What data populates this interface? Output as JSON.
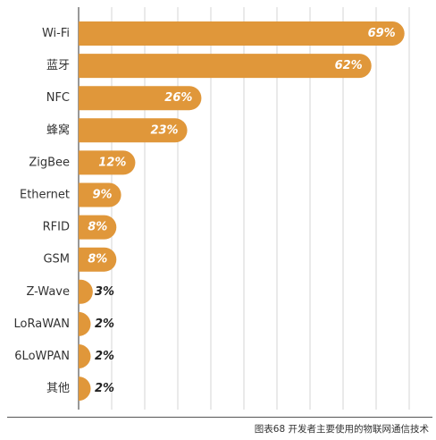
{
  "chart_data": {
    "type": "bar",
    "orientation": "horizontal",
    "categories": [
      "Wi-Fi",
      "蓝牙",
      "NFC",
      "蜂窝",
      "ZigBee",
      "Ethernet",
      "RFID",
      "GSM",
      "Z-Wave",
      "LoRaWAN",
      "6LoWPAN",
      "其他"
    ],
    "values": [
      69,
      62,
      26,
      23,
      12,
      9,
      8,
      8,
      3,
      2,
      2,
      2
    ],
    "value_labels": [
      "69%",
      "62%",
      "26%",
      "23%",
      "12%",
      "9%",
      "8%",
      "8%",
      "3%",
      "2%",
      "2%",
      "2%"
    ],
    "xlim": [
      0,
      70
    ],
    "grid": true,
    "bar_color": "#E0973A",
    "label_inside_color": "#ffffff",
    "label_outside_color": "#222222"
  },
  "caption": "图表68  开发者主要使用的物联网通信技术"
}
